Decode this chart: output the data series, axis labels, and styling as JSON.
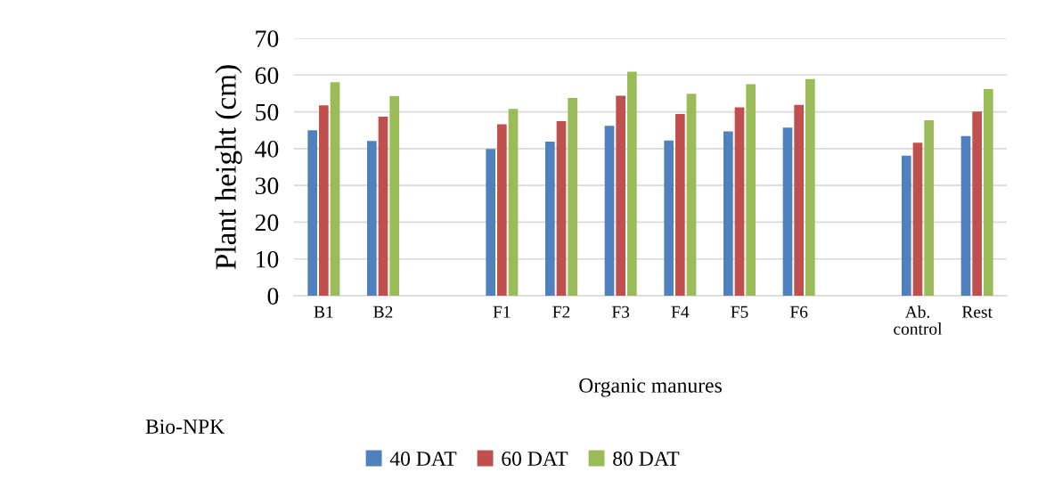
{
  "chart_data": {
    "type": "bar",
    "xlabel": "Organic manures",
    "ylabel": "Plant height (cm)",
    "annotations": [
      "Bio-NPK"
    ],
    "categories": [
      "B1",
      "B2",
      null,
      "F1",
      "F2",
      "F3",
      "F4",
      "F5",
      "F6",
      null,
      "Ab.\ncontrol",
      "Rest"
    ],
    "series": [
      {
        "name": "40 DAT",
        "color": "#4f81bd",
        "values": [
          45.0,
          42.1,
          null,
          39.9,
          41.9,
          46.2,
          42.2,
          44.7,
          45.7,
          null,
          38.1,
          43.4
        ]
      },
      {
        "name": "60 DAT",
        "color": "#c0504d",
        "values": [
          51.8,
          48.7,
          null,
          46.6,
          47.5,
          54.4,
          49.4,
          51.2,
          51.9,
          null,
          41.6,
          50.1
        ]
      },
      {
        "name": "80 DAT",
        "color": "#9bbb59",
        "values": [
          58.1,
          54.3,
          null,
          50.8,
          53.8,
          60.9,
          54.9,
          57.5,
          58.9,
          null,
          47.7,
          56.2
        ]
      }
    ],
    "ylim": [
      0,
      70
    ],
    "yticks": [
      0,
      10,
      20,
      30,
      40,
      50,
      60,
      70
    ],
    "grid": "y",
    "legend": "bottom"
  }
}
